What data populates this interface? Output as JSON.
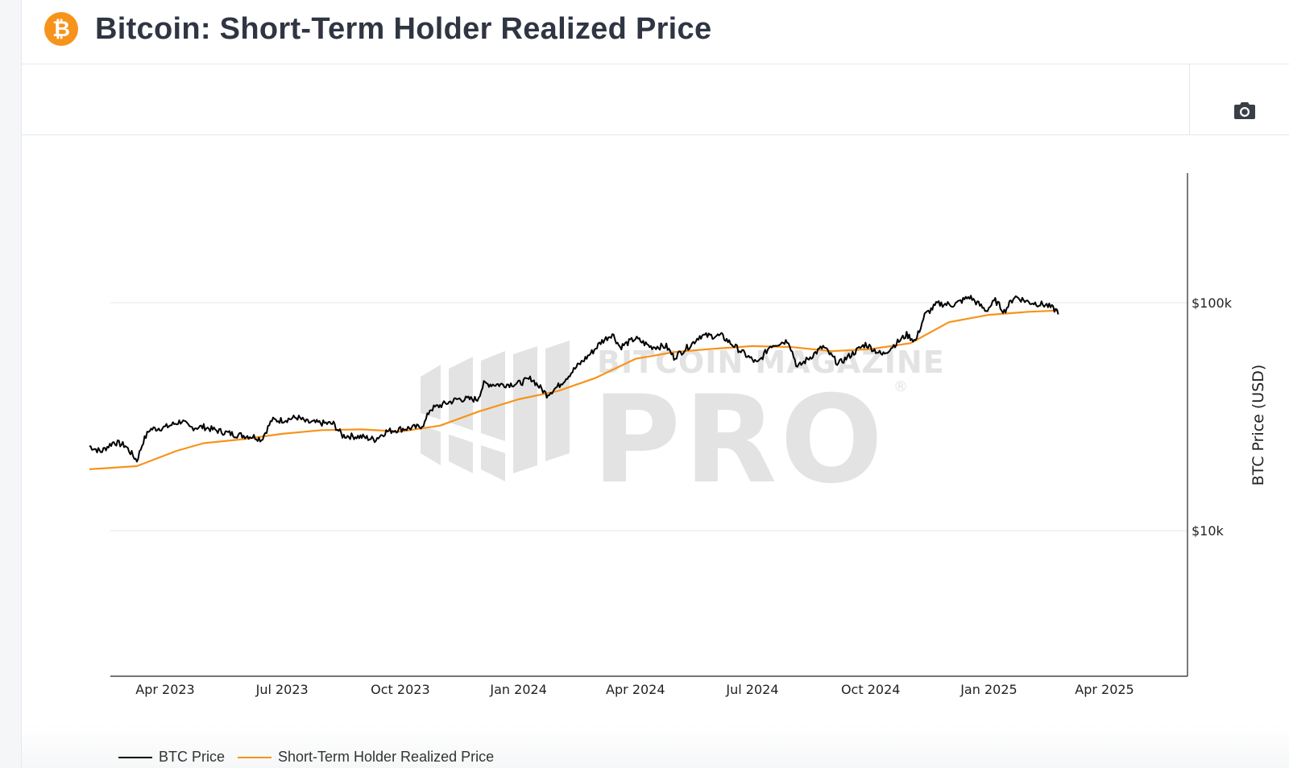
{
  "header": {
    "title": "Bitcoin: Short-Term Holder Realized Price",
    "logo_icon": "bitcoin-icon",
    "logo_color": "#f7931a"
  },
  "toolbar": {
    "camera_icon": "camera-icon"
  },
  "watermark": {
    "line1": "BITCOIN MAGAZINE",
    "line2": "PRO",
    "mark": "®"
  },
  "chart_data": {
    "type": "line",
    "x_axis": {
      "type": "date",
      "ticks": [
        "Apr 2023",
        "Jul 2023",
        "Oct 2023",
        "Jan 2024",
        "Apr 2024",
        "Jul 2024",
        "Oct 2024",
        "Jan 2025",
        "Apr 2025"
      ]
    },
    "y_axis": {
      "label": "BTC Price (USD)",
      "scale": "log",
      "position": "right",
      "ticks": [
        "$10k",
        "$100k"
      ],
      "range": [
        2300,
        370000
      ]
    },
    "grid": true,
    "legend_placement": "bottom-left",
    "series": [
      {
        "name": "BTC Price",
        "color": "#000000",
        "points": [
          [
            "2023-02-01",
            23500
          ],
          [
            "2023-02-10",
            22200
          ],
          [
            "2023-02-20",
            24500
          ],
          [
            "2023-03-01",
            23600
          ],
          [
            "2023-03-10",
            20300
          ],
          [
            "2023-03-15",
            24700
          ],
          [
            "2023-03-20",
            27800
          ],
          [
            "2023-04-01",
            28400
          ],
          [
            "2023-04-14",
            30300
          ],
          [
            "2023-04-20",
            28300
          ],
          [
            "2023-05-01",
            28500
          ],
          [
            "2023-05-10",
            27600
          ],
          [
            "2023-05-25",
            26400
          ],
          [
            "2023-06-10",
            25800
          ],
          [
            "2023-06-15",
            25100
          ],
          [
            "2023-06-23",
            30500
          ],
          [
            "2023-07-01",
            30500
          ],
          [
            "2023-07-13",
            31400
          ],
          [
            "2023-07-20",
            29900
          ],
          [
            "2023-08-10",
            29400
          ],
          [
            "2023-08-17",
            26100
          ],
          [
            "2023-09-01",
            25800
          ],
          [
            "2023-09-11",
            25100
          ],
          [
            "2023-09-20",
            27200
          ],
          [
            "2023-10-01",
            27900
          ],
          [
            "2023-10-16",
            28500
          ],
          [
            "2023-10-20",
            29700
          ],
          [
            "2023-10-24",
            34000
          ],
          [
            "2023-11-01",
            35400
          ],
          [
            "2023-11-15",
            37800
          ],
          [
            "2023-11-30",
            37700
          ],
          [
            "2023-12-05",
            44000
          ],
          [
            "2023-12-20",
            43700
          ],
          [
            "2024-01-01",
            44200
          ],
          [
            "2024-01-11",
            46500
          ],
          [
            "2024-01-23",
            39500
          ],
          [
            "2024-02-01",
            43100
          ],
          [
            "2024-02-15",
            52100
          ],
          [
            "2024-02-28",
            61300
          ],
          [
            "2024-03-05",
            67000
          ],
          [
            "2024-03-14",
            73000
          ],
          [
            "2024-03-20",
            63800
          ],
          [
            "2024-04-01",
            69700
          ],
          [
            "2024-04-13",
            64000
          ],
          [
            "2024-04-25",
            64300
          ],
          [
            "2024-05-01",
            57500
          ],
          [
            "2024-05-15",
            66000
          ],
          [
            "2024-05-21",
            71500
          ],
          [
            "2024-06-07",
            71500
          ],
          [
            "2024-06-24",
            60000
          ],
          [
            "2024-07-05",
            54000
          ],
          [
            "2024-07-15",
            64800
          ],
          [
            "2024-07-29",
            68300
          ],
          [
            "2024-08-05",
            52000
          ],
          [
            "2024-08-25",
            64100
          ],
          [
            "2024-09-06",
            53900
          ],
          [
            "2024-09-27",
            65800
          ],
          [
            "2024-10-10",
            59000
          ],
          [
            "2024-10-29",
            72300
          ],
          [
            "2024-11-05",
            67800
          ],
          [
            "2024-11-12",
            88000
          ],
          [
            "2024-11-22",
            98900
          ],
          [
            "2024-12-05",
            98000
          ],
          [
            "2024-12-17",
            106100
          ],
          [
            "2024-12-30",
            92300
          ],
          [
            "2025-01-06",
            102000
          ],
          [
            "2025-01-13",
            91500
          ],
          [
            "2025-01-21",
            106500
          ],
          [
            "2025-02-01",
            100600
          ],
          [
            "2025-02-15",
            97500
          ],
          [
            "2025-02-24",
            91400
          ]
        ]
      },
      {
        "name": "Short-Term Holder Realized Price",
        "color": "#f7931a",
        "points": [
          [
            "2023-02-01",
            18600
          ],
          [
            "2023-03-10",
            19200
          ],
          [
            "2023-04-10",
            22400
          ],
          [
            "2023-05-01",
            24200
          ],
          [
            "2023-06-01",
            25200
          ],
          [
            "2023-07-01",
            26600
          ],
          [
            "2023-08-01",
            27600
          ],
          [
            "2023-09-01",
            27800
          ],
          [
            "2023-10-01",
            27200
          ],
          [
            "2023-11-01",
            28900
          ],
          [
            "2023-12-01",
            33300
          ],
          [
            "2024-01-01",
            37700
          ],
          [
            "2024-02-01",
            41000
          ],
          [
            "2024-03-01",
            46800
          ],
          [
            "2024-04-01",
            56700
          ],
          [
            "2024-05-01",
            60700
          ],
          [
            "2024-06-01",
            62800
          ],
          [
            "2024-07-01",
            64500
          ],
          [
            "2024-08-01",
            63800
          ],
          [
            "2024-09-01",
            61300
          ],
          [
            "2024-10-01",
            62600
          ],
          [
            "2024-11-01",
            66400
          ],
          [
            "2024-12-01",
            82100
          ],
          [
            "2025-01-01",
            88400
          ],
          [
            "2025-02-01",
            91200
          ],
          [
            "2025-02-24",
            92400
          ]
        ]
      }
    ]
  }
}
